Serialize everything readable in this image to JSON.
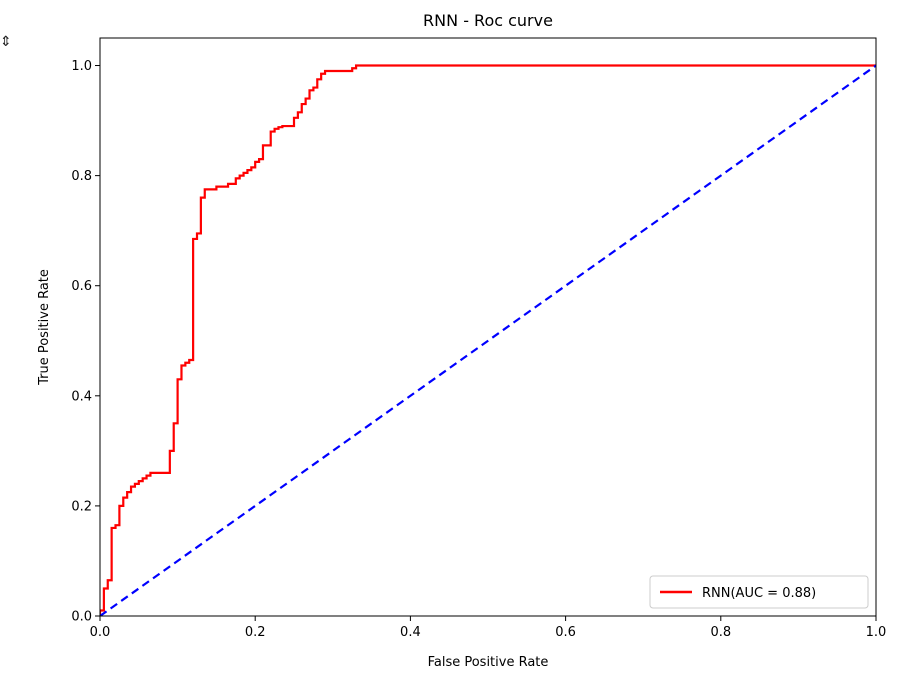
{
  "chart_data": {
    "type": "line",
    "title": "RNN - Roc curve",
    "xlabel": "False Positive Rate",
    "ylabel": "True Positive Rate",
    "xlim": [
      0.0,
      1.0
    ],
    "ylim": [
      0.0,
      1.05
    ],
    "x_ticks": [
      0.0,
      0.2,
      0.4,
      0.6,
      0.8,
      1.0
    ],
    "x_tick_labels": [
      "0.0",
      "0.2",
      "0.4",
      "0.6",
      "0.8",
      "1.0"
    ],
    "y_ticks": [
      0.0,
      0.2,
      0.4,
      0.6,
      0.8,
      1.0
    ],
    "y_tick_labels": [
      "0.0",
      "0.2",
      "0.4",
      "0.6",
      "0.8",
      "1.0"
    ],
    "grid": false,
    "legend_position": "bottom-right",
    "series": [
      {
        "name": "RNN(AUC = 0.88)",
        "color": "#ff0000",
        "style": "solid",
        "x": [
          0.0,
          0.0,
          0.005,
          0.005,
          0.01,
          0.01,
          0.015,
          0.015,
          0.02,
          0.02,
          0.025,
          0.025,
          0.03,
          0.03,
          0.035,
          0.035,
          0.04,
          0.04,
          0.045,
          0.045,
          0.05,
          0.05,
          0.055,
          0.055,
          0.06,
          0.06,
          0.065,
          0.065,
          0.09,
          0.09,
          0.095,
          0.095,
          0.1,
          0.1,
          0.105,
          0.105,
          0.11,
          0.11,
          0.115,
          0.115,
          0.12,
          0.12,
          0.125,
          0.125,
          0.13,
          0.13,
          0.135,
          0.135,
          0.15,
          0.15,
          0.165,
          0.165,
          0.175,
          0.175,
          0.18,
          0.18,
          0.185,
          0.185,
          0.19,
          0.19,
          0.195,
          0.195,
          0.2,
          0.2,
          0.205,
          0.205,
          0.21,
          0.21,
          0.22,
          0.22,
          0.225,
          0.225,
          0.23,
          0.23,
          0.235,
          0.235,
          0.25,
          0.25,
          0.255,
          0.255,
          0.26,
          0.26,
          0.265,
          0.265,
          0.27,
          0.27,
          0.275,
          0.275,
          0.28,
          0.28,
          0.285,
          0.285,
          0.29,
          0.29,
          0.31,
          0.31,
          0.325,
          0.325,
          0.33,
          0.33,
          1.0
        ],
        "y": [
          0.0,
          0.01,
          0.01,
          0.05,
          0.05,
          0.065,
          0.065,
          0.16,
          0.16,
          0.165,
          0.165,
          0.2,
          0.2,
          0.215,
          0.215,
          0.225,
          0.225,
          0.235,
          0.235,
          0.24,
          0.24,
          0.245,
          0.245,
          0.25,
          0.25,
          0.255,
          0.255,
          0.26,
          0.26,
          0.3,
          0.3,
          0.35,
          0.35,
          0.43,
          0.43,
          0.455,
          0.455,
          0.46,
          0.46,
          0.465,
          0.465,
          0.685,
          0.685,
          0.695,
          0.695,
          0.76,
          0.76,
          0.775,
          0.775,
          0.78,
          0.78,
          0.785,
          0.785,
          0.795,
          0.795,
          0.8,
          0.8,
          0.805,
          0.805,
          0.81,
          0.81,
          0.815,
          0.815,
          0.825,
          0.825,
          0.83,
          0.83,
          0.855,
          0.855,
          0.88,
          0.88,
          0.885,
          0.885,
          0.888,
          0.888,
          0.89,
          0.89,
          0.905,
          0.905,
          0.915,
          0.915,
          0.93,
          0.93,
          0.94,
          0.94,
          0.955,
          0.955,
          0.96,
          0.96,
          0.975,
          0.975,
          0.985,
          0.985,
          0.99,
          0.99,
          0.99,
          0.99,
          0.995,
          0.995,
          1.0,
          1.0
        ]
      },
      {
        "name": "",
        "color": "#0000ff",
        "style": "dashed",
        "x": [
          0.0,
          1.0
        ],
        "y": [
          0.0,
          1.0
        ]
      }
    ]
  },
  "ui": {
    "corner_glyph": "⇕"
  }
}
